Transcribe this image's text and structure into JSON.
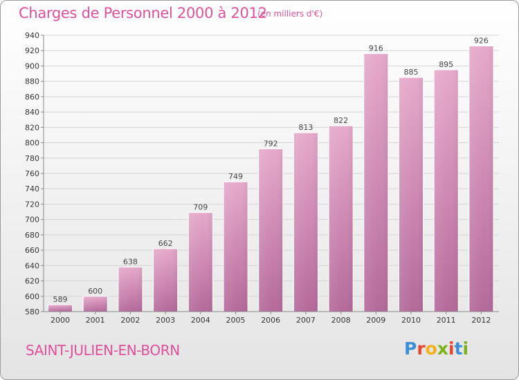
{
  "title": "Charges de Personnel 2000 à 2012",
  "unit_note": "(en milliers d'€)",
  "city": "SAINT-JULIEN-EN-BORN",
  "logo": {
    "text": "Proxiti",
    "colors": [
      "#3a8fd6",
      "#e8452c",
      "#f2b11a",
      "#7ab317",
      "#e8452c",
      "#3a8fd6",
      "#7ab317"
    ]
  },
  "chart_data": {
    "type": "bar",
    "title": "Charges de Personnel 2000 à 2012",
    "subtitle": "(en milliers d'€)",
    "xlabel": "",
    "ylabel": "",
    "categories": [
      "2000",
      "2001",
      "2002",
      "2003",
      "2004",
      "2005",
      "2006",
      "2007",
      "2008",
      "2009",
      "2010",
      "2011",
      "2012"
    ],
    "values": [
      589,
      600,
      638,
      662,
      709,
      749,
      792,
      813,
      822,
      916,
      885,
      895,
      926
    ],
    "ylim": [
      580,
      940
    ],
    "yticks": [
      580,
      600,
      620,
      640,
      660,
      680,
      700,
      720,
      740,
      760,
      780,
      800,
      820,
      840,
      860,
      880,
      900,
      920,
      940
    ],
    "grid": true,
    "bar_color": "#d98cb8"
  }
}
